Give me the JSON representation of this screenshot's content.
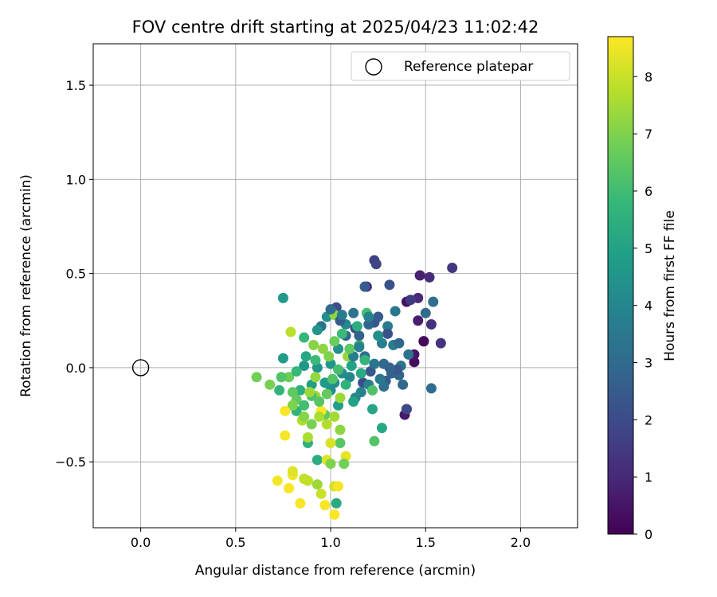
{
  "chart_data": {
    "type": "scatter",
    "title": "FOV centre drift starting at 2025/04/23 11:02:42",
    "xlabel": "Angular distance from reference (arcmin)",
    "ylabel": "Rotation from reference (arcmin)",
    "xlim": [
      -0.25,
      2.3
    ],
    "ylim": [
      -0.85,
      1.72
    ],
    "xticks": [
      "0.0",
      "0.5",
      "1.0",
      "1.5",
      "2.0"
    ],
    "xtick_values": [
      0,
      0.5,
      1.0,
      1.5,
      2.0
    ],
    "yticks": [
      "−0.5",
      "0.0",
      "0.5",
      "1.0",
      "1.5"
    ],
    "ytick_values": [
      -0.5,
      0,
      0.5,
      1.0,
      1.5
    ],
    "grid": true,
    "legend": {
      "position": "top-right",
      "entries": [
        "Reference platepar"
      ]
    },
    "reference_point": {
      "x": 0.0,
      "y": 0.0,
      "marker": "open-circle"
    },
    "colorbar": {
      "label": "Hours from first FF file",
      "colormap": "viridis",
      "range": [
        0,
        8.7
      ],
      "ticks": [
        "0",
        "1",
        "2",
        "3",
        "4",
        "5",
        "6",
        "7",
        "8"
      ],
      "tick_values": [
        0,
        1,
        2,
        3,
        4,
        5,
        6,
        7,
        8
      ]
    },
    "colormap_stops": [
      "#440154",
      "#482878",
      "#3e4989",
      "#31688e",
      "#26828e",
      "#1f9e89",
      "#35b779",
      "#6ece58",
      "#b5de2b",
      "#fde725"
    ],
    "points": [
      {
        "x": 1.49,
        "y": 0.14,
        "h": 0.1
      },
      {
        "x": 1.49,
        "y": 0.14,
        "h": 0.2
      },
      {
        "x": 1.44,
        "y": 0.03,
        "h": 0.3
      },
      {
        "x": 1.4,
        "y": 0.35,
        "h": 0.4
      },
      {
        "x": 1.44,
        "y": 0.07,
        "h": 0.5
      },
      {
        "x": 1.39,
        "y": -0.25,
        "h": 0.6
      },
      {
        "x": 1.46,
        "y": 0.25,
        "h": 0.7
      },
      {
        "x": 1.47,
        "y": 0.49,
        "h": 0.8
      },
      {
        "x": 1.19,
        "y": 0.43,
        "h": 0.9
      },
      {
        "x": 1.46,
        "y": 0.37,
        "h": 1.0
      },
      {
        "x": 1.52,
        "y": 0.48,
        "h": 1.1
      },
      {
        "x": 1.53,
        "y": 0.23,
        "h": 1.2
      },
      {
        "x": 1.58,
        "y": 0.13,
        "h": 1.3
      },
      {
        "x": 1.64,
        "y": 0.53,
        "h": 1.4
      },
      {
        "x": 1.42,
        "y": 0.36,
        "h": 1.5
      },
      {
        "x": 1.4,
        "y": -0.22,
        "h": 1.6
      },
      {
        "x": 1.23,
        "y": 0.57,
        "h": 1.7
      },
      {
        "x": 1.24,
        "y": 0.55,
        "h": 1.8
      },
      {
        "x": 1.13,
        "y": 0.21,
        "h": 1.9
      },
      {
        "x": 1.03,
        "y": 0.32,
        "h": 2.0
      },
      {
        "x": 1.17,
        "y": -0.08,
        "h": 2.1
      },
      {
        "x": 1.31,
        "y": 0.44,
        "h": 2.2
      },
      {
        "x": 1.23,
        "y": 0.24,
        "h": 2.3
      },
      {
        "x": 1.21,
        "y": -0.02,
        "h": 2.4
      },
      {
        "x": 1.18,
        "y": 0.43,
        "h": 2.5
      },
      {
        "x": 1.29,
        "y": -0.07,
        "h": 2.6
      },
      {
        "x": 1.32,
        "y": -0.03,
        "h": 2.7
      },
      {
        "x": 1.36,
        "y": -0.04,
        "h": 2.8
      },
      {
        "x": 1.38,
        "y": -0.09,
        "h": 2.9
      },
      {
        "x": 1.5,
        "y": 0.29,
        "h": 3.0
      },
      {
        "x": 1.53,
        "y": -0.11,
        "h": 3.1
      },
      {
        "x": 1.54,
        "y": 0.35,
        "h": 3.2
      },
      {
        "x": 1.41,
        "y": 0.07,
        "h": 3.3
      },
      {
        "x": 1.37,
        "y": 0.01,
        "h": 3.4
      },
      {
        "x": 1.34,
        "y": 0.3,
        "h": 3.5
      },
      {
        "x": 1.3,
        "y": 0.22,
        "h": 3.6
      },
      {
        "x": 1.27,
        "y": 0.13,
        "h": 3.7
      },
      {
        "x": 1.2,
        "y": -0.09,
        "h": 3.8
      },
      {
        "x": 1.16,
        "y": -0.13,
        "h": 3.9
      },
      {
        "x": 1.13,
        "y": -0.16,
        "h": 4.0
      },
      {
        "x": 1.08,
        "y": 0.23,
        "h": 4.1
      },
      {
        "x": 1.02,
        "y": -0.08,
        "h": 4.2
      },
      {
        "x": 1.0,
        "y": -0.12,
        "h": 4.3
      },
      {
        "x": 0.98,
        "y": 0.27,
        "h": 4.4
      },
      {
        "x": 0.93,
        "y": 0.0,
        "h": 4.5
      },
      {
        "x": 0.86,
        "y": 0.01,
        "h": 4.6
      },
      {
        "x": 0.75,
        "y": 0.37,
        "h": 4.7
      },
      {
        "x": 0.75,
        "y": 0.05,
        "h": 4.8
      },
      {
        "x": 1.04,
        "y": -0.2,
        "h": 4.9
      },
      {
        "x": 1.11,
        "y": 0.01,
        "h": 5.0
      },
      {
        "x": 1.22,
        "y": -0.22,
        "h": 5.1
      },
      {
        "x": 1.27,
        "y": -0.32,
        "h": 5.2
      },
      {
        "x": 1.03,
        "y": -0.72,
        "h": 5.3
      },
      {
        "x": 0.93,
        "y": -0.49,
        "h": 5.4
      },
      {
        "x": 0.88,
        "y": -0.4,
        "h": 5.5
      },
      {
        "x": 0.82,
        "y": -0.23,
        "h": 5.6
      },
      {
        "x": 0.73,
        "y": -0.12,
        "h": 5.7
      },
      {
        "x": 0.86,
        "y": 0.16,
        "h": 5.8
      },
      {
        "x": 0.92,
        "y": 0.04,
        "h": 5.9
      },
      {
        "x": 1.15,
        "y": 0.12,
        "h": 6.0
      },
      {
        "x": 1.19,
        "y": 0.29,
        "h": 6.1
      },
      {
        "x": 1.22,
        "y": -0.12,
        "h": 6.2
      },
      {
        "x": 1.23,
        "y": -0.39,
        "h": 6.3
      },
      {
        "x": 1.05,
        "y": -0.4,
        "h": 6.4
      },
      {
        "x": 0.97,
        "y": -0.25,
        "h": 6.5
      },
      {
        "x": 0.82,
        "y": -0.17,
        "h": 6.6
      },
      {
        "x": 0.78,
        "y": -0.05,
        "h": 6.7
      },
      {
        "x": 0.61,
        "y": -0.05,
        "h": 6.8
      },
      {
        "x": 0.68,
        "y": -0.09,
        "h": 6.9
      },
      {
        "x": 0.8,
        "y": -0.2,
        "h": 7.0
      },
      {
        "x": 0.91,
        "y": 0.12,
        "h": 7.1
      },
      {
        "x": 1.02,
        "y": 0.28,
        "h": 7.2
      },
      {
        "x": 1.09,
        "y": 0.06,
        "h": 7.3
      },
      {
        "x": 1.05,
        "y": -0.16,
        "h": 7.4
      },
      {
        "x": 0.92,
        "y": -0.15,
        "h": 7.5
      },
      {
        "x": 0.88,
        "y": -0.37,
        "h": 7.6
      },
      {
        "x": 0.85,
        "y": -0.28,
        "h": 7.7
      },
      {
        "x": 0.79,
        "y": 0.19,
        "h": 7.8
      },
      {
        "x": 0.88,
        "y": -0.6,
        "h": 7.9
      },
      {
        "x": 0.95,
        "y": -0.67,
        "h": 8.0
      },
      {
        "x": 1.02,
        "y": -0.63,
        "h": 8.1
      },
      {
        "x": 1.0,
        "y": -0.4,
        "h": 8.2
      },
      {
        "x": 0.98,
        "y": -0.49,
        "h": 8.3
      },
      {
        "x": 1.08,
        "y": -0.47,
        "h": 8.4
      },
      {
        "x": 0.8,
        "y": -0.57,
        "h": 8.5
      },
      {
        "x": 0.72,
        "y": -0.6,
        "h": 8.55
      },
      {
        "x": 0.78,
        "y": -0.64,
        "h": 8.6
      },
      {
        "x": 0.84,
        "y": -0.72,
        "h": 8.6
      },
      {
        "x": 0.97,
        "y": -0.73,
        "h": 8.6
      },
      {
        "x": 1.02,
        "y": -0.78,
        "h": 8.65
      },
      {
        "x": 0.95,
        "y": -0.23,
        "h": 8.65
      },
      {
        "x": 0.76,
        "y": -0.23,
        "h": 8.6
      },
      {
        "x": 0.76,
        "y": -0.36,
        "h": 8.6
      },
      {
        "x": 1.04,
        "y": -0.63,
        "h": 8.6
      },
      {
        "x": 0.95,
        "y": 0.22,
        "h": 3.2
      },
      {
        "x": 1.0,
        "y": 0.31,
        "h": 3.0
      },
      {
        "x": 1.05,
        "y": 0.25,
        "h": 2.6
      },
      {
        "x": 1.08,
        "y": 0.17,
        "h": 2.9
      },
      {
        "x": 1.12,
        "y": 0.29,
        "h": 3.3
      },
      {
        "x": 1.15,
        "y": 0.17,
        "h": 2.7
      },
      {
        "x": 1.18,
        "y": 0.06,
        "h": 3.1
      },
      {
        "x": 1.2,
        "y": 0.23,
        "h": 2.8
      },
      {
        "x": 1.23,
        "y": 0.02,
        "h": 3.4
      },
      {
        "x": 1.25,
        "y": 0.27,
        "h": 2.5
      },
      {
        "x": 1.28,
        "y": 0.02,
        "h": 3.0
      },
      {
        "x": 1.3,
        "y": 0.18,
        "h": 2.2
      },
      {
        "x": 1.33,
        "y": 0.12,
        "h": 3.6
      },
      {
        "x": 1.35,
        "y": -0.01,
        "h": 2.4
      },
      {
        "x": 1.36,
        "y": 0.13,
        "h": 2.9
      },
      {
        "x": 1.4,
        "y": -0.22,
        "h": 1.9
      },
      {
        "x": 1.12,
        "y": 0.06,
        "h": 3.7
      },
      {
        "x": 1.1,
        "y": -0.05,
        "h": 4.0
      },
      {
        "x": 1.06,
        "y": -0.03,
        "h": 4.2
      },
      {
        "x": 1.04,
        "y": 0.1,
        "h": 4.4
      },
      {
        "x": 1.0,
        "y": 0.02,
        "h": 4.6
      },
      {
        "x": 0.97,
        "y": -0.08,
        "h": 4.7
      },
      {
        "x": 0.93,
        "y": 0.2,
        "h": 4.5
      },
      {
        "x": 0.9,
        "y": -0.09,
        "h": 4.9
      },
      {
        "x": 0.87,
        "y": 0.06,
        "h": 5.2
      },
      {
        "x": 0.84,
        "y": -0.12,
        "h": 5.5
      },
      {
        "x": 0.82,
        "y": -0.02,
        "h": 5.8
      },
      {
        "x": 0.86,
        "y": -0.2,
        "h": 6.0
      },
      {
        "x": 0.9,
        "y": -0.15,
        "h": 6.2
      },
      {
        "x": 0.94,
        "y": -0.18,
        "h": 6.4
      },
      {
        "x": 0.98,
        "y": -0.14,
        "h": 6.6
      },
      {
        "x": 1.01,
        "y": -0.06,
        "h": 6.3
      },
      {
        "x": 1.04,
        "y": -0.01,
        "h": 6.1
      },
      {
        "x": 1.08,
        "y": -0.09,
        "h": 5.6
      },
      {
        "x": 1.12,
        "y": -0.18,
        "h": 5.0
      },
      {
        "x": 1.16,
        "y": -0.03,
        "h": 5.3
      },
      {
        "x": 1.18,
        "y": 0.04,
        "h": 5.7
      },
      {
        "x": 1.14,
        "y": 0.22,
        "h": 5.4
      },
      {
        "x": 1.1,
        "y": 0.1,
        "h": 6.5
      },
      {
        "x": 1.06,
        "y": 0.18,
        "h": 5.9
      },
      {
        "x": 1.02,
        "y": 0.14,
        "h": 6.7
      },
      {
        "x": 0.99,
        "y": 0.06,
        "h": 7.0
      },
      {
        "x": 0.96,
        "y": 0.1,
        "h": 7.2
      },
      {
        "x": 0.92,
        "y": -0.05,
        "h": 7.3
      },
      {
        "x": 0.89,
        "y": -0.13,
        "h": 7.4
      },
      {
        "x": 0.86,
        "y": -0.26,
        "h": 7.1
      },
      {
        "x": 0.9,
        "y": -0.3,
        "h": 6.9
      },
      {
        "x": 0.94,
        "y": -0.26,
        "h": 7.6
      },
      {
        "x": 0.98,
        "y": -0.3,
        "h": 7.7
      },
      {
        "x": 1.02,
        "y": -0.26,
        "h": 7.5
      },
      {
        "x": 1.05,
        "y": -0.33,
        "h": 7.2
      },
      {
        "x": 1.07,
        "y": -0.51,
        "h": 6.8
      },
      {
        "x": 1.0,
        "y": -0.51,
        "h": 7.0
      },
      {
        "x": 0.93,
        "y": -0.62,
        "h": 7.4
      },
      {
        "x": 0.86,
        "y": -0.59,
        "h": 7.9
      },
      {
        "x": 0.8,
        "y": -0.55,
        "h": 8.3
      },
      {
        "x": 0.74,
        "y": -0.05,
        "h": 6.3
      },
      {
        "x": 0.8,
        "y": -0.13,
        "h": 6.5
      },
      {
        "x": 1.2,
        "y": 0.27,
        "h": 3.9
      },
      {
        "x": 1.25,
        "y": 0.17,
        "h": 4.3
      },
      {
        "x": 1.28,
        "y": -0.1,
        "h": 3.2
      },
      {
        "x": 1.31,
        "y": 0.0,
        "h": 2.8
      },
      {
        "x": 1.26,
        "y": -0.06,
        "h": 3.5
      },
      {
        "x": 1.15,
        "y": 0.11,
        "h": 3.8
      },
      {
        "x": 1.06,
        "y": 0.28,
        "h": 3.6
      }
    ]
  }
}
